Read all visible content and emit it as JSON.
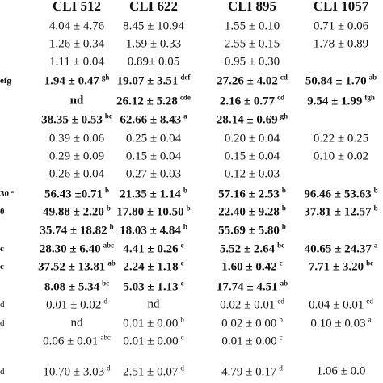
{
  "table": {
    "header": [
      "CLI 512",
      "CLI 622",
      "CLI 895",
      "CLI 1057"
    ],
    "rows": [
      {
        "left": null,
        "cells": [
          [
            "4.04 ± 4.76",
            null
          ],
          [
            "8.45 ± 10.94",
            null
          ],
          [
            "1.55 ± 0.10",
            null
          ],
          [
            "0.71 ± 0.06",
            null
          ]
        ]
      },
      {
        "left": null,
        "cells": [
          [
            "1.26 ± 0.34",
            null
          ],
          [
            "1.59 ± 0.33",
            null
          ],
          [
            "2.55 ± 0.15",
            null
          ],
          [
            "1.78 ± 0.89",
            null
          ]
        ]
      },
      {
        "left": null,
        "cells": [
          [
            "1.11 ± 0.04",
            null
          ],
          [
            "0.89± 0.05",
            null
          ],
          [
            "0.95 ± 0.30",
            null
          ],
          null
        ]
      },
      {
        "left": "efg",
        "cells": [
          [
            "1.94 ± 0.47",
            "gh"
          ],
          [
            "19.07 ± 3.51",
            "def"
          ],
          [
            "27.26 ± 4.02",
            "cd"
          ],
          [
            "50.84 ± 1.70",
            "ab"
          ]
        ]
      },
      {
        "left": null,
        "cells": [
          [
            "nd",
            null
          ],
          [
            "26.12 ± 5.28",
            "cde"
          ],
          [
            "2.16 ± 0.77",
            "cd"
          ],
          [
            "9.54 ± 1.99",
            "fgh"
          ]
        ]
      },
      {
        "left": null,
        "cells": [
          [
            "38.35 ± 0.53",
            "bc"
          ],
          [
            "62.66 ± 8.43",
            "a"
          ],
          [
            "28.14 ± 0.69",
            "gh"
          ],
          null
        ]
      },
      {
        "left": null,
        "cells": [
          [
            "0.39 ± 0.06",
            null
          ],
          [
            "0.25 ± 0.04",
            null
          ],
          [
            "0.20 ± 0.04",
            null
          ],
          [
            "0.22 ± 0.25",
            null
          ]
        ]
      },
      {
        "left": null,
        "cells": [
          [
            "0.29 ± 0.09",
            null
          ],
          [
            "0.15 ± 0.04",
            null
          ],
          [
            "0.15 ± 0.04",
            null
          ],
          [
            "0.10 ± 0.02",
            null
          ]
        ]
      },
      {
        "left": null,
        "cells": [
          [
            "0.26 ± 0.04",
            null
          ],
          [
            "0.27 ± 0.03",
            null
          ],
          [
            "0.12 ± 0.03",
            null
          ],
          null
        ]
      },
      {
        "left": "30 ª",
        "cells": [
          [
            "56.43 ±0.71",
            "b"
          ],
          [
            "21.35 ± 1.14",
            "b"
          ],
          [
            "57.16 ± 2.53",
            "b"
          ],
          [
            "96.46 ± 53.63",
            "b"
          ]
        ]
      },
      {
        "left": "0",
        "cells": [
          [
            "49.88 ± 2.20",
            "b"
          ],
          [
            "17.80 ± 10.50",
            "b"
          ],
          [
            "22.40 ± 9.28",
            "b"
          ],
          [
            "37.81 ± 12.57",
            "b"
          ]
        ]
      },
      {
        "left": null,
        "cells": [
          [
            "35.74 ± 18.82",
            "b"
          ],
          [
            "18.03 ± 4.84",
            "b"
          ],
          [
            "55.69 ± 5.80",
            "b"
          ],
          null
        ]
      },
      {
        "left": "c",
        "cells": [
          [
            "28.30 ± 6.40",
            "abc"
          ],
          [
            "4.41 ± 0.26",
            "c"
          ],
          [
            "5.52 ± 2.64",
            "bc"
          ],
          [
            "40.65 ± 24.37",
            "a"
          ]
        ]
      },
      {
        "left": "c",
        "cells": [
          [
            "37.52 ± 13.81",
            "ab"
          ],
          [
            "2.24 ± 1.18",
            "c"
          ],
          [
            "1.60 ± 0.42",
            "c"
          ],
          [
            "7.71 ± 3.20",
            "bc"
          ]
        ]
      },
      {
        "left": null,
        "cells": [
          [
            "8.08 ± 5.34",
            "bc"
          ],
          [
            "5.03 ± 1.13",
            "c"
          ],
          [
            "17.74 ± 4.51",
            "ab"
          ],
          null
        ]
      },
      {
        "left": "d",
        "cells": [
          [
            "0.01 ± 0.02",
            "d"
          ],
          [
            "nd",
            null
          ],
          [
            "0.02 ± 0.01",
            "cd"
          ],
          [
            "0.04 ± 0.01",
            "cd"
          ]
        ]
      },
      {
        "left": "d",
        "cells": [
          [
            "nd",
            null
          ],
          [
            "0.01 ± 0.00",
            "b"
          ],
          [
            "0.02 ± 0.00",
            "b"
          ],
          [
            "0.10 ± 0.03",
            "a"
          ]
        ]
      },
      {
        "left": null,
        "cells": [
          [
            "0.06 ± 0.01",
            "abc"
          ],
          [
            "0.01 ± 0.00",
            "c"
          ],
          [
            "0.01 ± 0.00",
            "c"
          ],
          null
        ]
      },
      {
        "left": "d",
        "cells": [
          [
            "10.70 ± 3.03",
            "d"
          ],
          [
            "2.51 ± 0.07",
            "d"
          ],
          [
            "4.79 ± 0.17",
            "d"
          ],
          [
            "1.06 ± 0.0",
            null
          ]
        ]
      }
    ]
  }
}
